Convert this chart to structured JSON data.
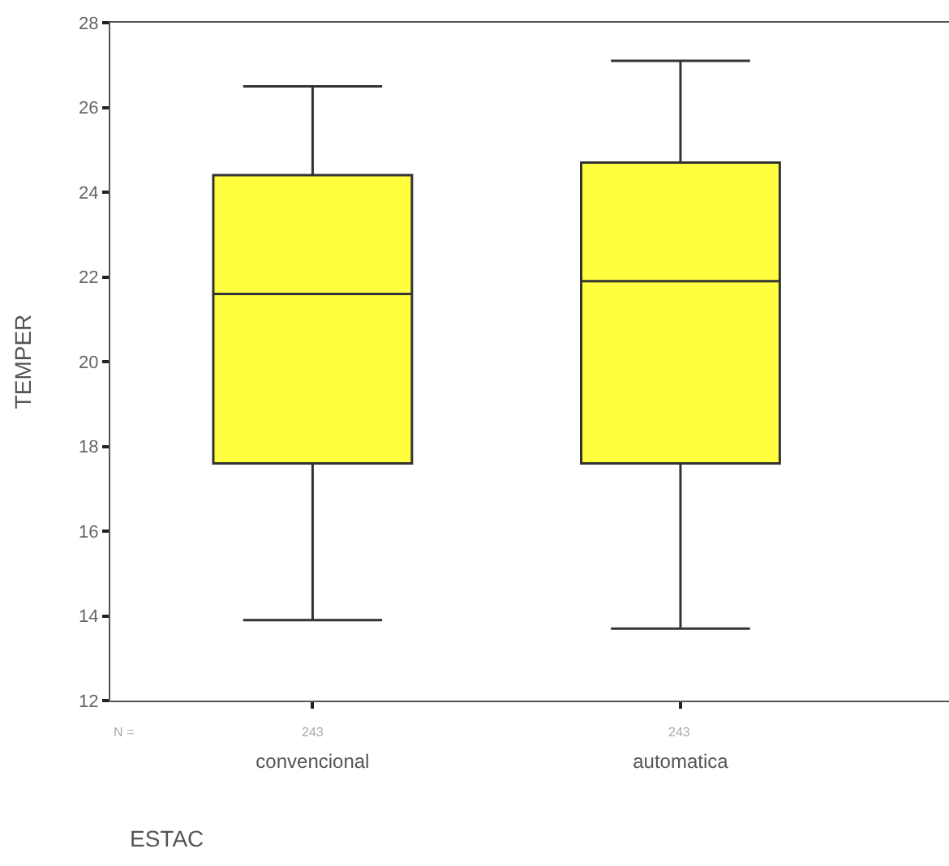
{
  "chart_data": {
    "type": "box",
    "xlabel": "ESTAC",
    "ylabel": "TEMPER",
    "categories": [
      "convencional",
      "automatica"
    ],
    "boxes": [
      {
        "low": 13.9,
        "q1": 17.6,
        "median": 21.6,
        "q3": 24.4,
        "high": 26.5
      },
      {
        "low": 13.7,
        "q1": 17.6,
        "median": 21.9,
        "q3": 24.7,
        "high": 27.1
      }
    ],
    "color": "#ffff40",
    "ylim": [
      12,
      28
    ],
    "yticks": [
      12,
      14,
      16,
      18,
      20,
      22,
      24,
      26,
      28
    ],
    "annotations": [
      "N =",
      "243",
      "243"
    ]
  }
}
